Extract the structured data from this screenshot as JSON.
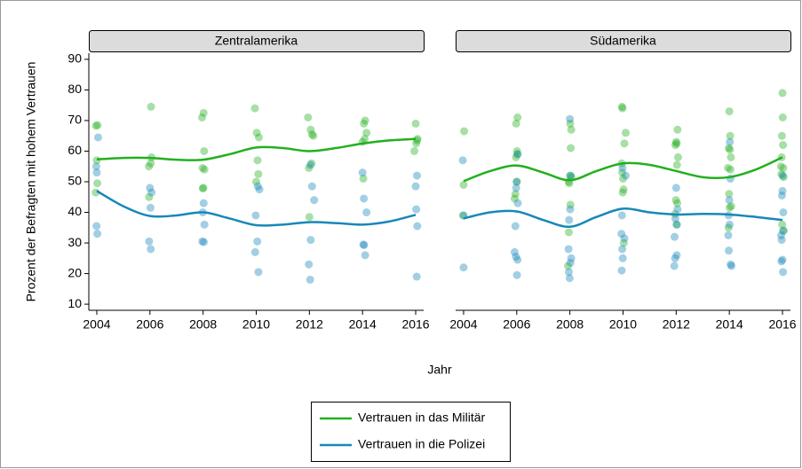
{
  "xlabel": "Jahr",
  "ylabel": "Prozent der Befragten mit hohem Vertrauen",
  "chart_data": [
    {
      "type": "scatter",
      "title": "Zentralamerika",
      "xlim": [
        2003.7,
        2016.3
      ],
      "ylim": [
        8,
        92
      ],
      "xticks": [
        2004,
        2006,
        2008,
        2010,
        2012,
        2014,
        2016
      ],
      "yticks": [
        10,
        20,
        30,
        40,
        50,
        60,
        70,
        80,
        90
      ],
      "series": [
        {
          "name": "Vertrauen in das Militär",
          "color": "#22b01e",
          "x": [
            2004.03,
            2003.97,
            2004.0,
            2004.02,
            2003.96,
            2006.04,
            2006.06,
            2006.03,
            2005.96,
            2005.97,
            2008.02,
            2007.96,
            2008.04,
            2007.98,
            2008.05,
            2008.01,
            2007.99,
            2009.95,
            2010.02,
            2010.1,
            2010.05,
            2010.08,
            2010.0,
            2011.95,
            2012.05,
            2012.1,
            2012.15,
            2012.08,
            2011.98,
            2012.0,
            2014.1,
            2014.05,
            2014.15,
            2014.08,
            2014.0,
            2014.03,
            2016.0,
            2016.05,
            2016.02,
            2015.95,
            2016.07
          ],
          "values": [
            68.5,
            68.3,
            57,
            49.5,
            46.5,
            74.5,
            58,
            56,
            55,
            45,
            72.5,
            71,
            60,
            54.5,
            54,
            48,
            47.8,
            74,
            66,
            64.5,
            57,
            52.5,
            50,
            71,
            67,
            65.5,
            65,
            56,
            54.5,
            38.5,
            70,
            69,
            66,
            64,
            63,
            51,
            69,
            63.5,
            62.5,
            60,
            64
          ],
          "trend_x": [
            2004,
            2005,
            2006,
            2007,
            2008,
            2009,
            2010,
            2011,
            2012,
            2013,
            2014,
            2015,
            2016
          ],
          "trend": [
            57.3,
            57.8,
            57.8,
            57.2,
            57.2,
            59,
            61.2,
            61,
            60,
            61,
            62.5,
            63.5,
            64
          ]
        },
        {
          "name": "Vertrauen in die Polizei",
          "color": "#1788b8",
          "x": [
            2004.05,
            2003.98,
            2004.0,
            2003.99,
            2004.02,
            2006.0,
            2006.06,
            2006.02,
            2005.97,
            2006.03,
            2008.02,
            2007.99,
            2008.05,
            2007.97,
            2008.03,
            2010.06,
            2010.12,
            2009.98,
            2010.04,
            2009.96,
            2010.08,
            2012.04,
            2012.1,
            2012.18,
            2012.05,
            2011.98,
            2012.03,
            2014.0,
            2014.05,
            2014.15,
            2014.03,
            2014.06,
            2014.1,
            2016.05,
            2016.0,
            2016.02,
            2016.06,
            2016.04
          ],
          "values": [
            64.5,
            55,
            53,
            35.5,
            33,
            48,
            46.5,
            41.5,
            30.5,
            28,
            43,
            40,
            36,
            30.5,
            30.3,
            48.5,
            47.5,
            39,
            30.5,
            27,
            20.5,
            55.5,
            48.5,
            44,
            31,
            23,
            18,
            53,
            44.5,
            40,
            29.5,
            29.3,
            26,
            52,
            48.5,
            41,
            35.5,
            19
          ],
          "trend_x": [
            2004,
            2005,
            2006,
            2007,
            2008,
            2009,
            2010,
            2011,
            2012,
            2013,
            2014,
            2015,
            2016
          ],
          "trend": [
            47,
            42,
            38.8,
            39,
            40,
            38,
            35.8,
            36,
            36.8,
            36.5,
            36,
            37,
            39.2
          ]
        }
      ]
    },
    {
      "type": "scatter",
      "title": "Südamerika",
      "xlim": [
        2003.7,
        2016.3
      ],
      "ylim": [
        8,
        92
      ],
      "xticks": [
        2004,
        2006,
        2008,
        2010,
        2012,
        2014,
        2016
      ],
      "series": [
        {
          "name": "Vertrauen in das Militär",
          "color": "#22b01e",
          "x": [
            2004.02,
            2004.0,
            2003.98,
            2006.03,
            2005.98,
            2006.01,
            2006.04,
            2005.97,
            2006.0,
            2005.95,
            2005.92,
            2008.01,
            2008.05,
            2008.03,
            2008.0,
            2008.06,
            2007.95,
            2007.98,
            2008.02,
            2007.96,
            2007.93,
            2009.96,
            2009.98,
            2010.1,
            2010.05,
            2009.95,
            2009.97,
            2010.0,
            2010.02,
            2009.99,
            2010.03,
            2012.05,
            2012.0,
            2012.02,
            2011.97,
            2012.07,
            2012.03,
            2011.99,
            2012.04,
            2011.96,
            2012.01,
            2014.0,
            2014.03,
            2013.98,
            2014.02,
            2014.06,
            2013.95,
            2014.04,
            2013.99,
            2014.07,
            2014.01,
            2013.97,
            2016.0,
            2016.01,
            2015.98,
            2016.02,
            2015.97,
            2015.94,
            2016.03,
            2015.96,
            2016.04,
            2015.99,
            2016.05
          ],
          "values": [
            66.5,
            49,
            39,
            71,
            69,
            60,
            59,
            58,
            50,
            46,
            44.5,
            69,
            67,
            61,
            52,
            51.5,
            50,
            49.5,
            42.5,
            33.5,
            22.5,
            74.5,
            74,
            66,
            62.5,
            56,
            53,
            51,
            47.5,
            46.5,
            30,
            67,
            63,
            62.5,
            62,
            58,
            55.5,
            44,
            43,
            39.5,
            36,
            73,
            65,
            61,
            60.5,
            58,
            54.5,
            54,
            46,
            42,
            41.5,
            35,
            79,
            71,
            65,
            62,
            58,
            55,
            54.5,
            52.5,
            51.5,
            36,
            34
          ],
          "trend_x": [
            2004,
            2005,
            2006,
            2007,
            2008,
            2009,
            2010,
            2011,
            2012,
            2013,
            2014,
            2015,
            2016
          ],
          "trend": [
            50.2,
            53.5,
            55.3,
            53,
            50.5,
            53.5,
            56,
            55.5,
            53.5,
            51.5,
            51.5,
            54,
            58
          ]
        },
        {
          "name": "Vertrauen in die Polizei",
          "color": "#1788b8",
          "x": [
            2003.97,
            2004.0,
            2004.0,
            2006.02,
            2006.0,
            2005.98,
            2006.04,
            2005.95,
            2005.92,
            2005.97,
            2006.03,
            2006.01,
            2008.0,
            2008.03,
            2008.01,
            2007.97,
            2007.95,
            2008.05,
            2008.02,
            2007.96,
            2007.99,
            2009.98,
            2010.1,
            2009.96,
            2009.94,
            2010.05,
            2009.97,
            2009.99,
            2009.95,
            2012.0,
            2012.05,
            2011.97,
            2012.03,
            2011.94,
            2012.02,
            2011.96,
            2011.93,
            2014.02,
            2014.04,
            2014.0,
            2013.97,
            2014.01,
            2013.96,
            2013.98,
            2014.05,
            2014.08,
            2016.01,
            2016.0,
            2015.98,
            2016.03,
            2016.02,
            2015.95,
            2015.97,
            2016.0,
            2015.96,
            2016.02
          ],
          "values": [
            57,
            39,
            22,
            59,
            50,
            48,
            43,
            35.5,
            27,
            25.5,
            24.5,
            19.5,
            70.5,
            52,
            41,
            37.5,
            28,
            25,
            23.5,
            20.5,
            18.5,
            54.5,
            52,
            39,
            33,
            31.5,
            28,
            25,
            21,
            48,
            41,
            38,
            36,
            32,
            26,
            25,
            22.5,
            63,
            51,
            44,
            39,
            36,
            32.5,
            27.5,
            23,
            22.5,
            52,
            47,
            45.5,
            40,
            34,
            32.5,
            31,
            24.5,
            24,
            20.5
          ],
          "trend_x": [
            2004,
            2005,
            2006,
            2007,
            2008,
            2009,
            2010,
            2011,
            2012,
            2013,
            2014,
            2015,
            2016
          ],
          "trend": [
            38,
            40,
            40.3,
            37.5,
            35.3,
            38.5,
            41.2,
            40,
            39.3,
            39.5,
            39.3,
            38.5,
            37.5
          ]
        }
      ]
    }
  ]
}
